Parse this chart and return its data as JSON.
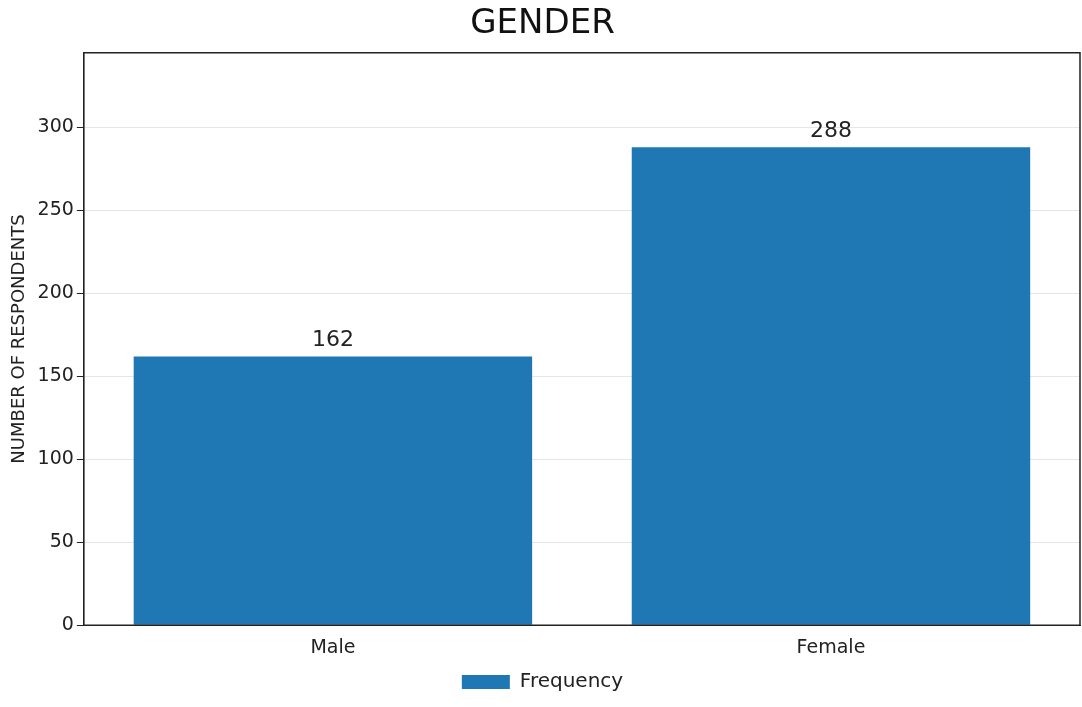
{
  "chart_data": {
    "type": "bar",
    "title": "GENDER",
    "ylabel": "NUMBER OF RESPONDENTS",
    "categories": [
      "Male",
      "Female"
    ],
    "series": [
      {
        "name": "Frequency",
        "color": "#1f77b4",
        "values": [
          162,
          288
        ]
      }
    ],
    "ylim": [
      0,
      345
    ],
    "yticks": [
      0,
      50,
      100,
      150,
      200,
      250,
      300
    ],
    "grid": "y",
    "legend": "bottom",
    "data_labels": true
  }
}
